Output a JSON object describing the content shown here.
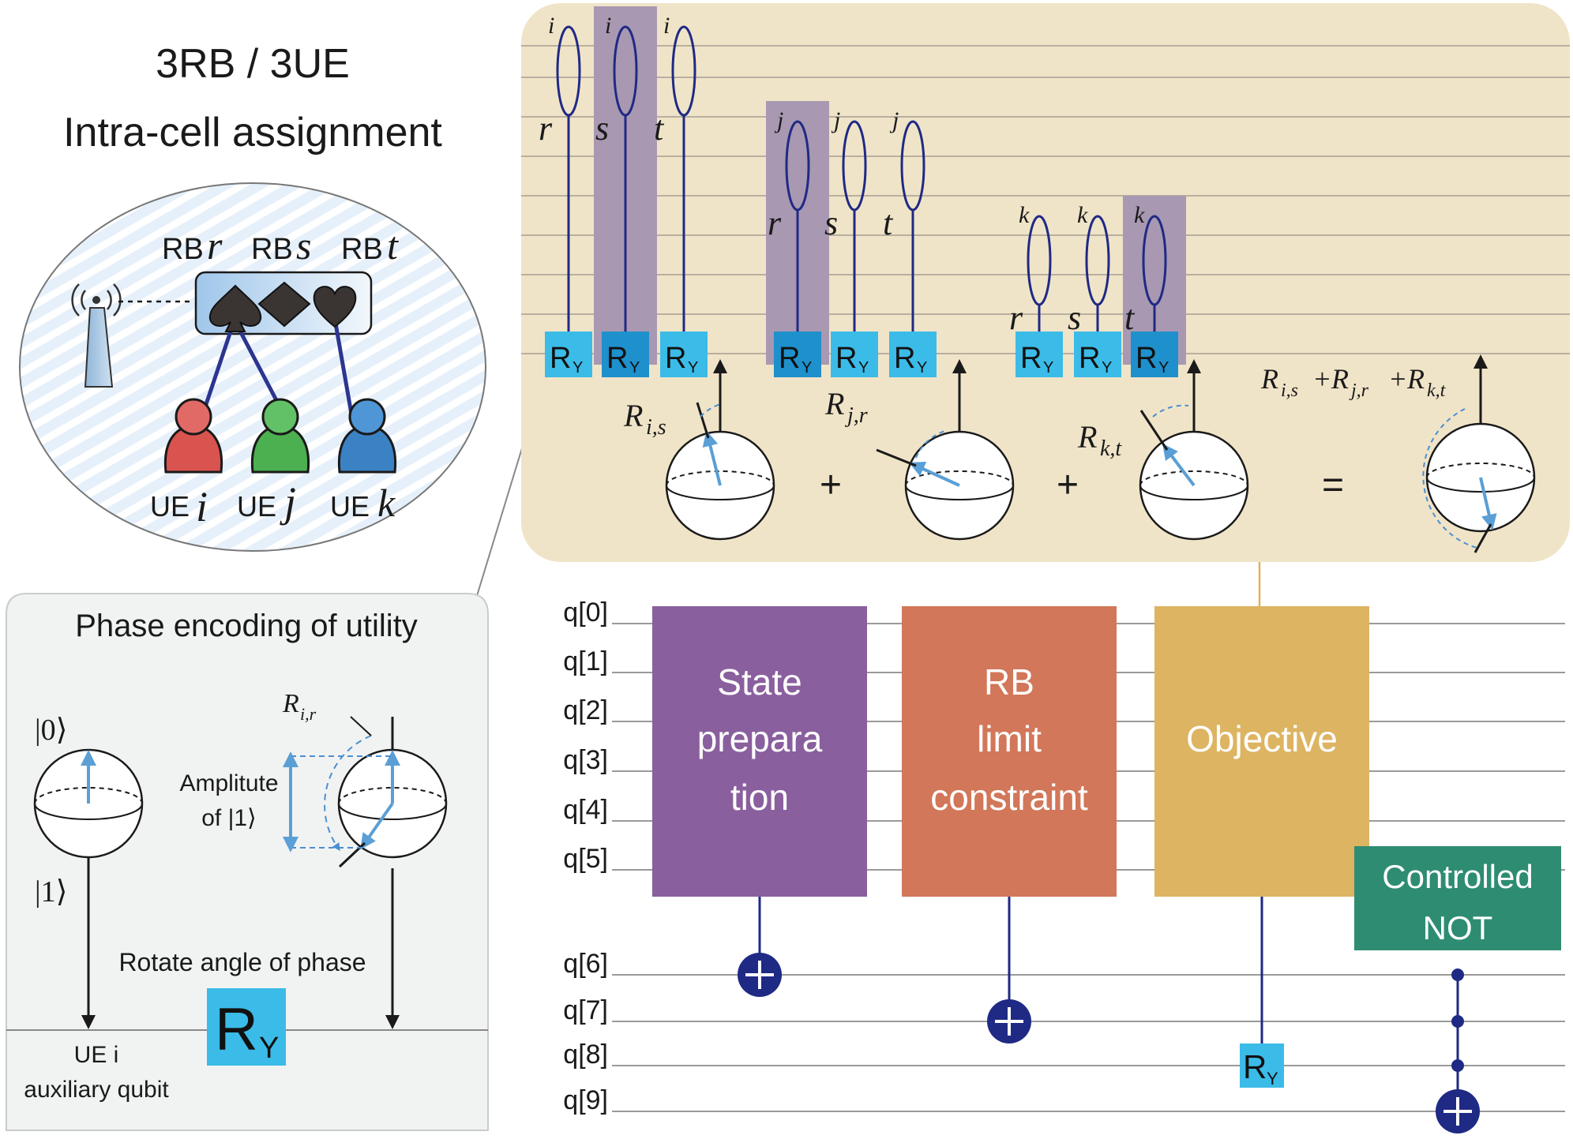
{
  "title": {
    "line1": "3RB / 3UE",
    "line2": "Intra-cell assignment"
  },
  "cell": {
    "rb_prefix": "RB",
    "rb_letters": [
      "r",
      "s",
      "t"
    ],
    "ue_prefix": "UE",
    "ue_letters": [
      "i",
      "j",
      "k"
    ],
    "ue_colors": [
      "#d9534f",
      "#4caf50",
      "#3b82c4"
    ],
    "rb_icons": [
      "spade-icon",
      "diamond-icon",
      "heart-icon"
    ],
    "links": [
      [
        "r",
        "i"
      ],
      [
        "s",
        "j"
      ],
      [
        "t",
        "k"
      ]
    ]
  },
  "phase": {
    "title": "Phase encoding of utility",
    "ket0": "|0⟩",
    "ket1": "|1⟩",
    "angle_label": "R",
    "angle_sub": "i,r",
    "amp_line1": "Amplitute",
    "amp_line2": "of |1⟩",
    "rotate_label": "Rotate angle of phase",
    "gate": "R",
    "gate_sub": "Y",
    "aux_line1": "UE i",
    "aux_line2": "auxiliary qubit"
  },
  "couplings": {
    "gate": "R",
    "gate_sub": "Y",
    "groups": [
      {
        "ue": "i",
        "rbs": [
          "r",
          "s",
          "t"
        ],
        "highlight": 1
      },
      {
        "ue": "j",
        "rbs": [
          "r",
          "s",
          "t"
        ],
        "highlight": 0
      },
      {
        "ue": "k",
        "rbs": [
          "r",
          "s",
          "t"
        ],
        "highlight": 2
      }
    ],
    "sum_terms": [
      {
        "main": "R",
        "sub": "i,s"
      },
      {
        "main": "R",
        "sub": "j,r"
      },
      {
        "main": "R",
        "sub": "k,t"
      }
    ],
    "plus": "+",
    "equals": "=",
    "total": {
      "a": "i,s",
      "b": "j,r",
      "c": "k,t",
      "plus": "+"
    }
  },
  "circuit": {
    "qubits": [
      "q[0]",
      "q[1]",
      "q[2]",
      "q[3]",
      "q[4]",
      "q[5]",
      "q[6]",
      "q[7]",
      "q[8]",
      "q[9]"
    ],
    "blocks": [
      {
        "lines": [
          "State",
          "prepara",
          "tion"
        ],
        "color": "#8a5f9e",
        "target": "q[6]"
      },
      {
        "lines": [
          "RB",
          "limit",
          "constraint"
        ],
        "color": "#d27759",
        "target": "q[7]"
      },
      {
        "lines": [
          "Objective"
        ],
        "color": "#ddb462",
        "target": "q[8]"
      },
      {
        "lines": [
          "Controlled",
          "NOT"
        ],
        "color": "#2e8c72",
        "target": "q[9]"
      }
    ],
    "target_gate": "R",
    "target_gate_sub": "Y",
    "cnot_symbol": "+"
  },
  "colors": {
    "panel_beige": "#f0e4c8",
    "gate_light": "#3bbbe8",
    "gate_dark": "#1e90cc",
    "highlight": "#a898b2",
    "navy": "#1f2a85",
    "arrow_blue": "#5a9fd6"
  }
}
